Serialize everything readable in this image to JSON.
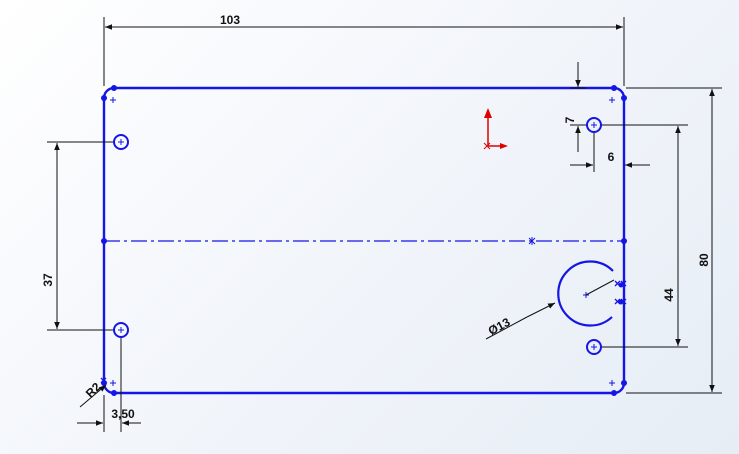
{
  "app": {
    "view": "sketch"
  },
  "colors": {
    "background": "#f2f5fa",
    "sketch_line": "#1515e6",
    "dimension": "#111111",
    "origin": "#e00000"
  },
  "sketch": {
    "icons": {
      "origin": "origin-axis-icon",
      "relation": "coincident-relation-icon"
    }
  },
  "dimensions": {
    "width": "103",
    "height": "80",
    "hole_spacing_left": "37",
    "hole_spacing_right": "44",
    "hole_offset_y": "7",
    "hole_offset_x": "6",
    "circle_diameter": "Ø13",
    "corner_radius": "R2",
    "edge_offset": "3,50"
  }
}
